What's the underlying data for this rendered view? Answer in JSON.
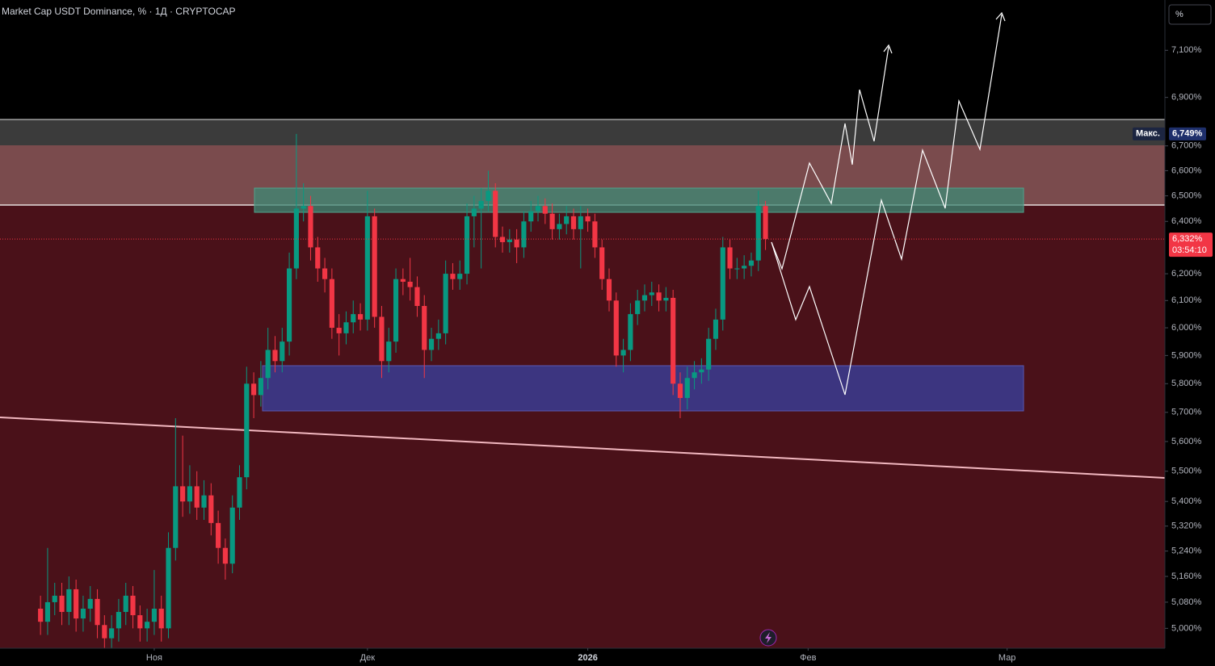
{
  "chart_data": {
    "type": "candlestick",
    "title": "Market Cap USDT Dominance, % · 1Д · CRYPTOCAP",
    "scale_button": "%",
    "log_scale": true,
    "grid": false,
    "up_color": "#089981",
    "down_color": "#f23645",
    "xlim": [
      -5.7,
      158.2
    ],
    "xticks": [
      {
        "value": 16,
        "label": "Ноя"
      },
      {
        "value": 46,
        "label": "Дек"
      },
      {
        "value": 77,
        "label": "2026"
      },
      {
        "value": 108,
        "label": "Фев"
      },
      {
        "value": 136,
        "label": "Мар"
      }
    ],
    "ylim": [
      4.94,
      7.32
    ],
    "yticks": [
      {
        "value": 5.0,
        "label": "5,000%"
      },
      {
        "value": 5.08,
        "label": "5,080%"
      },
      {
        "value": 5.16,
        "label": "5,160%"
      },
      {
        "value": 5.24,
        "label": "5,240%"
      },
      {
        "value": 5.32,
        "label": "5,320%"
      },
      {
        "value": 5.4,
        "label": "5,400%"
      },
      {
        "value": 5.5,
        "label": "5,500%"
      },
      {
        "value": 5.6,
        "label": "5,600%"
      },
      {
        "value": 5.7,
        "label": "5,700%"
      },
      {
        "value": 5.8,
        "label": "5,800%"
      },
      {
        "value": 5.9,
        "label": "5,900%"
      },
      {
        "value": 6.0,
        "label": "6,000%"
      },
      {
        "value": 6.1,
        "label": "6,100%"
      },
      {
        "value": 6.2,
        "label": "6,200%"
      },
      {
        "value": 6.4,
        "label": "6,400%"
      },
      {
        "value": 6.5,
        "label": "6,500%"
      },
      {
        "value": 6.6,
        "label": "6,600%"
      },
      {
        "value": 6.7,
        "label": "6,700%"
      },
      {
        "value": 6.9,
        "label": "6,900%"
      },
      {
        "value": 7.1,
        "label": "7,100%"
      }
    ],
    "open": [
      5.06,
      5.02,
      5.08,
      5.1,
      5.05,
      5.12,
      5.03,
      5.06,
      5.09,
      5.01,
      4.97,
      5.0,
      5.05,
      5.1,
      5.04,
      5.0,
      5.02,
      5.06,
      5.0,
      5.25,
      5.45,
      5.4,
      5.45,
      5.38,
      5.42,
      5.33,
      5.25,
      5.2,
      5.38,
      5.48,
      5.8,
      5.76,
      5.82,
      5.92,
      5.88,
      5.95,
      6.22,
      6.45,
      6.46,
      6.3,
      6.22,
      6.18,
      6.0,
      5.98,
      6.02,
      6.05,
      6.03,
      6.42,
      6.04,
      5.88,
      5.95,
      6.18,
      6.17,
      6.15,
      6.08,
      5.92,
      5.96,
      5.98,
      6.2,
      6.18,
      6.2,
      6.42,
      6.45,
      6.48,
      6.52,
      6.34,
      6.32,
      6.33,
      6.3,
      6.4,
      6.44,
      6.46,
      6.43,
      6.37,
      6.39,
      6.42,
      6.37,
      6.42,
      6.4,
      6.3,
      6.18,
      6.1,
      5.9,
      5.92,
      6.05,
      6.1,
      6.12,
      6.13,
      6.1,
      6.11,
      5.8,
      5.75,
      5.82,
      5.84,
      5.85,
      5.96,
      6.03,
      6.3,
      6.22,
      6.22,
      6.23,
      6.25,
      6.46
    ],
    "high": [
      5.1,
      5.25,
      5.14,
      5.14,
      5.16,
      5.15,
      5.1,
      5.13,
      5.12,
      5.04,
      5.04,
      5.09,
      5.14,
      5.13,
      5.07,
      5.06,
      5.18,
      5.1,
      5.3,
      5.68,
      5.62,
      5.52,
      5.5,
      5.47,
      5.46,
      5.37,
      5.28,
      5.42,
      5.52,
      5.86,
      5.84,
      5.88,
      6.0,
      5.97,
      6.0,
      6.28,
      6.749,
      6.55,
      6.5,
      6.34,
      6.26,
      6.22,
      6.05,
      6.06,
      6.1,
      6.09,
      6.52,
      6.45,
      6.08,
      6.0,
      6.22,
      6.22,
      6.26,
      6.19,
      6.12,
      6.0,
      6.03,
      6.25,
      6.24,
      6.25,
      6.47,
      6.5,
      6.53,
      6.6,
      6.55,
      6.38,
      6.37,
      6.37,
      6.44,
      6.48,
      6.5,
      6.49,
      6.47,
      6.43,
      6.46,
      6.45,
      6.46,
      6.45,
      6.43,
      6.33,
      6.22,
      6.13,
      5.96,
      6.09,
      6.14,
      6.16,
      6.17,
      6.16,
      6.15,
      6.14,
      5.84,
      5.86,
      5.88,
      5.89,
      6.0,
      6.07,
      6.34,
      6.33,
      6.26,
      6.27,
      6.28,
      6.52,
      6.48
    ],
    "low": [
      4.98,
      4.98,
      5.04,
      5.01,
      5.01,
      4.99,
      4.99,
      5.02,
      4.97,
      4.93,
      4.93,
      4.96,
      5.01,
      5.0,
      4.96,
      4.96,
      4.98,
      4.96,
      4.97,
      5.21,
      5.35,
      5.36,
      5.34,
      5.34,
      5.29,
      5.2,
      5.15,
      5.17,
      5.34,
      5.44,
      5.68,
      5.72,
      5.78,
      5.84,
      5.84,
      5.9,
      6.18,
      6.4,
      6.25,
      6.17,
      6.13,
      5.96,
      5.9,
      5.94,
      5.98,
      5.99,
      5.99,
      6.0,
      5.82,
      5.84,
      5.91,
      6.12,
      6.1,
      6.04,
      5.82,
      5.88,
      5.92,
      5.94,
      6.14,
      6.14,
      6.16,
      6.3,
      6.22,
      6.44,
      6.3,
      6.28,
      6.28,
      6.24,
      6.26,
      6.36,
      6.4,
      6.39,
      6.33,
      6.33,
      6.35,
      6.33,
      6.22,
      6.36,
      6.26,
      6.14,
      6.06,
      5.86,
      5.84,
      5.88,
      6.01,
      6.06,
      6.08,
      6.06,
      6.06,
      5.76,
      5.68,
      5.71,
      5.78,
      5.8,
      5.81,
      5.92,
      5.99,
      6.18,
      6.18,
      6.18,
      6.19,
      6.21,
      6.29
    ],
    "close": [
      5.02,
      5.08,
      5.1,
      5.05,
      5.12,
      5.03,
      5.06,
      5.09,
      5.01,
      4.97,
      5.0,
      5.05,
      5.1,
      5.04,
      5.0,
      5.02,
      5.06,
      5.0,
      5.25,
      5.45,
      5.4,
      5.45,
      5.38,
      5.42,
      5.33,
      5.25,
      5.2,
      5.38,
      5.48,
      5.8,
      5.76,
      5.82,
      5.92,
      5.88,
      5.95,
      6.22,
      6.45,
      6.46,
      6.3,
      6.22,
      6.18,
      6.0,
      5.98,
      6.02,
      6.05,
      6.03,
      6.42,
      6.04,
      5.88,
      5.95,
      6.18,
      6.17,
      6.15,
      6.08,
      5.92,
      5.96,
      5.98,
      6.2,
      6.18,
      6.2,
      6.42,
      6.45,
      6.48,
      6.52,
      6.34,
      6.32,
      6.33,
      6.3,
      6.4,
      6.44,
      6.46,
      6.43,
      6.37,
      6.39,
      6.42,
      6.37,
      6.42,
      6.4,
      6.3,
      6.18,
      6.1,
      5.9,
      5.92,
      6.05,
      6.1,
      6.12,
      6.13,
      6.1,
      6.11,
      5.8,
      5.75,
      5.82,
      5.84,
      5.85,
      5.96,
      6.03,
      6.3,
      6.22,
      6.22,
      6.23,
      6.25,
      6.46,
      6.332
    ],
    "max_marker": {
      "text": "Макс.",
      "value": 6.749,
      "label": "6,749%"
    },
    "last_price": {
      "value": 6.332,
      "label": "6,332%",
      "countdown": "03:54:10"
    }
  }
}
